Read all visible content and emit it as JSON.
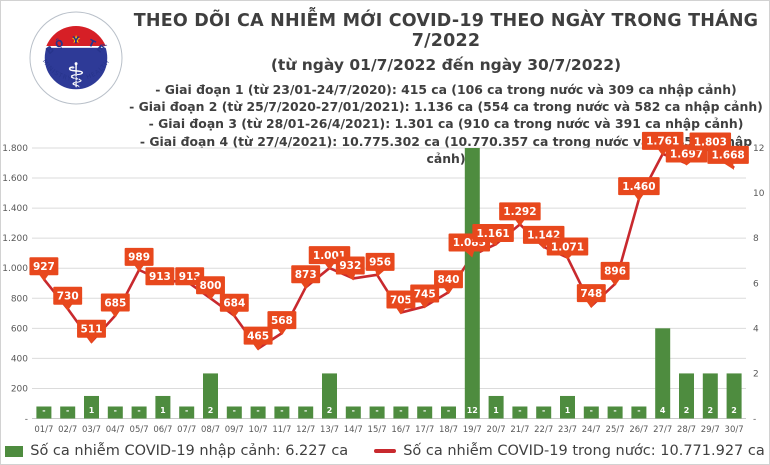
{
  "header": {
    "title": "THEO DÕI CA NHIỄM MỚI COVID-19 THEO NGÀY TRONG THÁNG 7/2022",
    "subtitle": "(từ ngày 01/7/2022 đến ngày 30/7/2022)",
    "phases": [
      "- Giai đoạn 1 (từ 23/01-24/7/2020): 415 ca (106 ca trong nước và 309 ca nhập cảnh)",
      "- Giai đoạn 2 (từ 25/7/2020-27/01/2021): 1.136 ca (554 ca trong nước và 582 ca nhập cảnh)",
      "- Giai đoạn 3 (từ 28/01-26/4/2021): 1.301 ca (910 ca trong nước và 391 ca nhập cảnh)",
      "- Giai đoạn 4 (từ 27/4/2021): 10.775.302 ca (10.770.357 ca trong nước và 4.945 ca nhập cảnh)"
    ]
  },
  "logo": {
    "top_text": "BỘ Y TẾ",
    "bottom_text": "MINISTRY OF HEALTH"
  },
  "chart_data": {
    "type": "combo-bar-line",
    "categories": [
      "01/7",
      "02/7",
      "03/7",
      "04/7",
      "05/7",
      "06/7",
      "07/7",
      "08/7",
      "09/7",
      "10/7",
      "11/7",
      "12/7",
      "13/7",
      "14/7",
      "15/7",
      "16/7",
      "17/7",
      "18/7",
      "19/7",
      "20/7",
      "21/7",
      "22/7",
      "23/7",
      "24/7",
      "25/7",
      "26/7",
      "27/7",
      "28/7",
      "29/7",
      "30/7"
    ],
    "series": [
      {
        "name": "Số ca nhiễm COVID-19 nhập cảnh",
        "type": "bar",
        "axis": "right",
        "values": [
          null,
          null,
          1,
          null,
          null,
          1,
          null,
          2,
          null,
          null,
          null,
          null,
          2,
          null,
          null,
          null,
          null,
          null,
          12,
          1,
          null,
          null,
          1,
          null,
          null,
          null,
          4,
          2,
          2,
          2
        ],
        "labels": [
          "-",
          "-",
          "1",
          "-",
          "-",
          "1",
          "-",
          "2",
          "-",
          "-",
          "-",
          "-",
          "2",
          "-",
          "-",
          "-",
          "-",
          "-",
          "12",
          "1",
          "-",
          "-",
          "1",
          "-",
          "-",
          "-",
          "4",
          "2",
          "2",
          "2"
        ]
      },
      {
        "name": "Số ca nhiễm COVID-19 trong nước",
        "type": "line",
        "axis": "left",
        "values": [
          927,
          730,
          511,
          685,
          989,
          913,
          913,
          800,
          684,
          465,
          568,
          873,
          1001,
          932,
          956,
          705,
          745,
          840,
          1085,
          1161,
          1292,
          1142,
          1071,
          748,
          896,
          1460,
          1761,
          1697,
          1803,
          1668
        ],
        "labels": [
          "927",
          "730",
          "511",
          "685",
          "989",
          "913",
          "913",
          "800",
          "684",
          "465",
          "568",
          "873",
          "1.001",
          "932",
          "956",
          "705",
          "745",
          "840",
          "1.085",
          "1.161",
          "1.292",
          "1.142",
          "1.071",
          "748",
          "896",
          "1.460",
          "1.761",
          "1.697",
          "1.803",
          "1.668"
        ]
      }
    ],
    "left_axis": {
      "min": 0,
      "max": 1800,
      "step": 200,
      "tick_labels": [
        "1.800",
        "1.600",
        "1.400",
        "1.200",
        "1.000",
        "800",
        "600",
        "400",
        "200",
        "-"
      ]
    },
    "right_axis": {
      "min": 0,
      "max": 12,
      "step": 2,
      "tick_labels": [
        "12",
        "10",
        "8",
        "6",
        "4",
        "2",
        "-"
      ]
    },
    "grid": true,
    "legend_position": "bottom",
    "colors": {
      "bar": "#4E8C3F",
      "line": "#C8292E",
      "label_bg": "#E8481D",
      "label_text": "#FFFFFF",
      "axis_text": "#595959",
      "grid": "#DBDBDB",
      "baseline": "#C9C9C9"
    },
    "label_offsets": {
      "5": [
        -3,
        8
      ],
      "6": [
        3,
        8
      ],
      "13": [
        -3,
        0
      ],
      "14": [
        3,
        0
      ],
      "18": [
        -3,
        0
      ],
      "19": [
        -3,
        2
      ],
      "21": [
        0,
        1
      ],
      "22": [
        0,
        2
      ],
      "27": [
        0,
        3
      ],
      "28": [
        0,
        7
      ],
      "29": [
        -6,
        0
      ]
    }
  },
  "legend": {
    "items": [
      {
        "swatch": "bar",
        "label": "Số ca nhiễm COVID-19 nhập cảnh: 6.227 ca"
      },
      {
        "swatch": "line",
        "label": "Số ca nhiễm COVID-19 trong nước: 10.771.927 ca"
      }
    ]
  }
}
